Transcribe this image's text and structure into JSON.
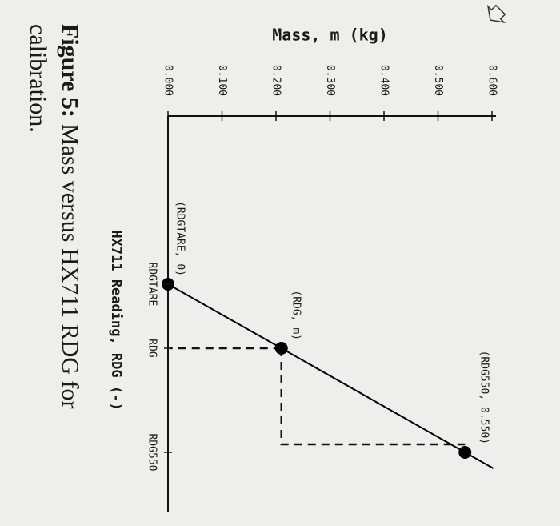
{
  "chart_data": {
    "type": "line",
    "y_label": "Mass, m (kg)",
    "x_label": "HX711 Reading, RDG (-)",
    "categories": [
      "RDGTARE",
      "RDG",
      "RDG550"
    ],
    "values": [
      0,
      0.21,
      0.55
    ],
    "annotations": [
      "(RDGTARE, 0)",
      "(RDG, m)",
      "(RDG550, 0.550)"
    ],
    "color": "#000000",
    "ylim": [
      0,
      0.6
    ],
    "yticks": [
      {
        "value": 0,
        "label": "0.000"
      },
      {
        "value": 0.1,
        "label": "0.100"
      },
      {
        "value": 0.2,
        "label": "0.200"
      },
      {
        "value": 0.3,
        "label": "0.300"
      },
      {
        "value": 0.4,
        "label": "0.400"
      },
      {
        "value": 0.5,
        "label": "0.500"
      },
      {
        "value": 0.6,
        "label": "0.600"
      }
    ]
  },
  "caption": {
    "label": "Figure 5:",
    "line1": "Mass versus HX711 RDG for",
    "line2": "calibration."
  }
}
